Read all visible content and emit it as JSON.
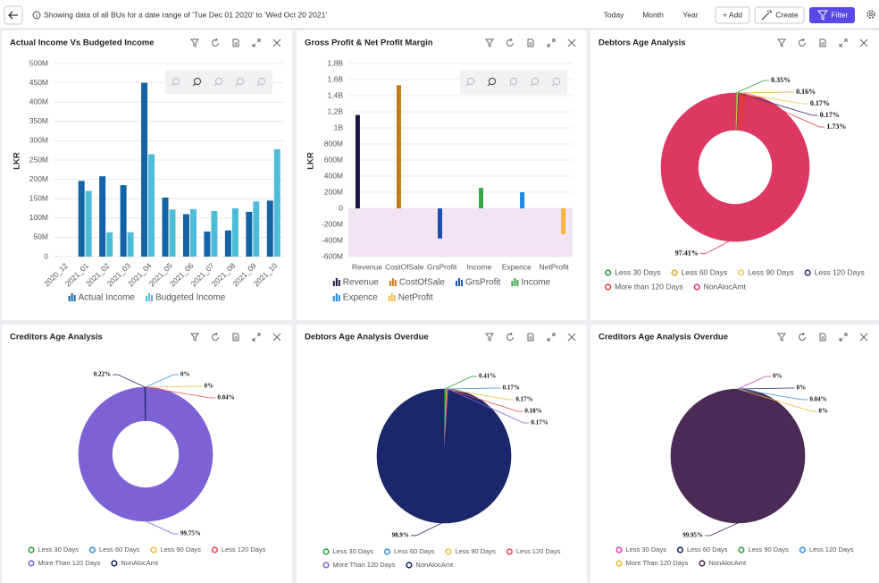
{
  "header": {
    "info": "Showing data of all BUs for a date range of 'Tue Dec 01 2020' to 'Wed Oct 20 2021'",
    "buttons": [
      "Today",
      "Month",
      "Year",
      "+ Add",
      "Create",
      "Filter"
    ]
  },
  "chart_data": [
    {
      "type": "bar",
      "title": "Actual Income Vs Budgeted Income",
      "ylabel": "LKR",
      "categories": [
        "2020_12",
        "2021_01",
        "2021_02",
        "2021_03",
        "2021_04",
        "2021_05",
        "2021_06",
        "2021_07",
        "2021_08",
        "2021_09",
        "2021_10"
      ],
      "series": [
        {
          "name": "Actual Income",
          "color": "#1463a5",
          "values": [
            null,
            196000000,
            208000000,
            185000000,
            450000000,
            153000000,
            110000000,
            65000000,
            68000000,
            116000000,
            145000000
          ]
        },
        {
          "name": "Budgeted Income",
          "color": "#4dbcd6",
          "values": [
            null,
            170000000,
            63000000,
            63000000,
            265000000,
            122000000,
            123000000,
            118000000,
            125000000,
            143000000,
            278000000
          ]
        }
      ],
      "ylim": [
        0,
        500000000
      ],
      "yticks": [
        0,
        {
          "value": 50000000,
          "label": "50M"
        },
        {
          "value": 100000000,
          "label": "100M"
        },
        {
          "value": 150000000,
          "label": "150M"
        },
        {
          "value": 200000000,
          "label": "200M"
        },
        {
          "value": 250000000,
          "label": "250M"
        },
        {
          "value": 300000000,
          "label": "300M"
        },
        {
          "value": 350000000,
          "label": "350M"
        },
        {
          "value": 400000000,
          "label": "400M"
        },
        {
          "value": 450000000,
          "label": "450M"
        },
        {
          "value": 500000000,
          "label": "500M"
        }
      ],
      "grid": true
    },
    {
      "type": "bar",
      "title": "Gross Profit & Net Profit Margin",
      "ylabel": "LKR",
      "categories": [
        "Revenue",
        "CostOfSale",
        "GrsProfit",
        "Income",
        "Expence",
        "NetProfit"
      ],
      "values": [
        1160000000,
        1530000000,
        -375000000,
        255000000,
        200000000,
        -320000000
      ],
      "colors": [
        "#1c1244",
        "#c8791c",
        "#1d4fb3",
        "#3aa64a",
        "#1e88e5",
        "#f4b740"
      ],
      "negative_band_color": "#f3e4f4",
      "ylim": [
        -600000000,
        1800000000
      ],
      "yticks": [
        {
          "value": -600000000,
          "label": "-600M"
        },
        {
          "value": -400000000,
          "label": "-400M"
        },
        {
          "value": -200000000,
          "label": "-200M"
        },
        0,
        {
          "value": 200000000,
          "label": "200M"
        },
        {
          "value": 400000000,
          "label": "400M"
        },
        {
          "value": 600000000,
          "label": "600M"
        },
        {
          "value": 800000000,
          "label": "800M"
        },
        {
          "value": 1000000000,
          "label": "1B"
        },
        {
          "value": 1200000000,
          "label": "1,2B"
        },
        {
          "value": 1400000000,
          "label": "1,4B"
        },
        {
          "value": 1600000000,
          "label": "1,6B"
        },
        {
          "value": 1800000000,
          "label": "1,8B"
        }
      ],
      "grid": true
    },
    {
      "type": "pie",
      "donut": true,
      "title": "Debtors Age Analysis",
      "categories": [
        "Less 30 Days",
        "Less 60 Days",
        "Less 90 Days",
        "Less 120 Days",
        "More than 120 Days",
        "NonAlocAmt"
      ],
      "values": [
        0.35,
        0.16,
        0.17,
        0.17,
        1.73,
        97.41
      ],
      "value_labels": [
        "0.35%",
        "0.16%",
        "0.17%",
        "0.17%",
        "1.73%",
        "97.41%"
      ],
      "colors": [
        "#2e9e3e",
        "#e8a33a",
        "#f2c94c",
        "#2c2f7a",
        "#e0394a",
        "#dc3862"
      ]
    },
    {
      "type": "pie",
      "donut": true,
      "title": "Creditors Age Analysis",
      "categories": [
        "Less 30 Days",
        "Less 60 Days",
        "Less 90 Days",
        "Less 120 Days",
        "More Than 120 Days",
        "NonAlocAmt"
      ],
      "values": [
        0,
        0,
        0,
        0.04,
        99.75,
        0.22
      ],
      "value_labels": [
        null,
        "0%",
        "0%",
        "0.04%",
        "99.75%",
        "0.22%"
      ],
      "colors": [
        "#2e9e3e",
        "#3b8fd9",
        "#f0b83c",
        "#e8495a",
        "#7d62d6",
        "#1f2a6b"
      ]
    },
    {
      "type": "pie",
      "donut": false,
      "title": "Debtors Age Analysis Overdue",
      "categories": [
        "Less 30 Days",
        "Less 60 Days",
        "Less 90 Days",
        "Less 120 Days",
        "More Than 120 Days",
        "NonAlocAmt"
      ],
      "values": [
        0.41,
        0.17,
        0.17,
        0.18,
        0.17,
        98.9
      ],
      "value_labels": [
        "0.41%",
        "0.17%",
        "0.17%",
        "0.18%",
        "0.17%",
        "98.9%"
      ],
      "colors": [
        "#2e9e3e",
        "#3b8fd9",
        "#f0b83c",
        "#e8495a",
        "#8a5fd0",
        "#1b266b"
      ]
    },
    {
      "type": "pie",
      "donut": false,
      "title": "Creditors Age Analysis Overdue",
      "categories": [
        "Less 30 Days",
        "Less 60 Days",
        "Less 90 Days",
        "Less 120 Days",
        "More Than 120 Days",
        "NonAlocAmt"
      ],
      "values": [
        0,
        0,
        0,
        0.04,
        0,
        99.95
      ],
      "value_labels": [
        "0%",
        "0%",
        null,
        "0.04%",
        "0%",
        "99.95%"
      ],
      "colors": [
        "#d63fb5",
        "#1f2a6b",
        "#2e9e3e",
        "#3b8fd9",
        "#f0b83c",
        "#4b2a55"
      ]
    }
  ]
}
